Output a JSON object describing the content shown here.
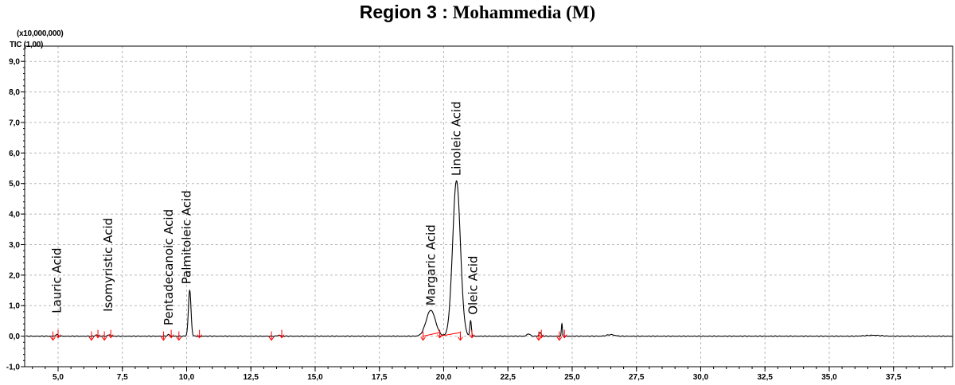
{
  "title_part1": "Region 3 :",
  "title_part2": "Mohammedia (M)",
  "chart_data": {
    "type": "line",
    "title": "Region 3 : Mohammedia (M)",
    "y_scale_label": "(x10,000,000)",
    "trace_label": "TIC (1,00)",
    "xlim": [
      3.7,
      39.8
    ],
    "ylim": [
      -1.0,
      9.5
    ],
    "grid": true,
    "x_ticks": [
      5.0,
      7.5,
      10.0,
      12.5,
      15.0,
      17.5,
      20.0,
      22.5,
      25.0,
      27.5,
      30.0,
      32.5,
      35.0,
      37.5
    ],
    "x_tick_labels": [
      "5,0",
      "7,5",
      "10,0",
      "12,5",
      "15,0",
      "17,5",
      "20,0",
      "22,5",
      "25,0",
      "27,5",
      "30,0",
      "32,5",
      "35,0",
      "37,5"
    ],
    "y_ticks": [
      -1.0,
      0.0,
      1.0,
      2.0,
      3.0,
      4.0,
      5.0,
      6.0,
      7.0,
      8.0,
      9.0
    ],
    "y_tick_labels": [
      "-1,0",
      "0,0",
      "1,0",
      "2,0",
      "3,0",
      "4,0",
      "5,0",
      "6,0",
      "7,0",
      "8,0",
      "9,0"
    ],
    "series": [
      {
        "color": "#000000",
        "baseline": 0.0,
        "peaks": [
          {
            "rt": 4.95,
            "height": 0.05,
            "width": 0.05
          },
          {
            "rt": 6.5,
            "height": 0.04,
            "width": 0.05
          },
          {
            "rt": 7.0,
            "height": 0.05,
            "width": 0.05
          },
          {
            "rt": 9.3,
            "height": 0.05,
            "width": 0.05
          },
          {
            "rt": 10.12,
            "height": 1.5,
            "width": 0.05
          },
          {
            "rt": 13.6,
            "height": 0.03,
            "width": 0.06
          },
          {
            "rt": 19.5,
            "height": 0.85,
            "width": 0.18
          },
          {
            "rt": 20.5,
            "height": 5.1,
            "width": 0.15
          },
          {
            "rt": 21.05,
            "height": 0.5,
            "width": 0.03
          },
          {
            "rt": 23.3,
            "height": 0.08,
            "width": 0.06
          },
          {
            "rt": 23.75,
            "height": 0.12,
            "width": 0.04
          },
          {
            "rt": 24.6,
            "height": 0.4,
            "width": 0.02
          },
          {
            "rt": 26.5,
            "height": 0.05,
            "width": 0.15
          },
          {
            "rt": 36.7,
            "height": 0.03,
            "width": 0.3
          }
        ]
      }
    ],
    "integration_markers_color": "#ff0000",
    "integration_markers": [
      4.8,
      5.0,
      6.3,
      6.55,
      6.8,
      7.05,
      9.1,
      9.4,
      9.7,
      10.5,
      13.3,
      13.7,
      19.2,
      19.85,
      20.65,
      21.1,
      23.7,
      23.8,
      24.5,
      24.7
    ],
    "integration_baselines": [
      [
        19.2,
        19.85
      ],
      [
        19.85,
        20.65
      ]
    ],
    "peak_labels": [
      {
        "text": "Lauric Acid",
        "rt": 4.95
      },
      {
        "text": "Isomyristic Acid",
        "rt": 6.95
      },
      {
        "text": "Pentadecanoic Acid",
        "rt": 9.3
      },
      {
        "text": "Palmitoleic Acid",
        "rt": 10.0
      },
      {
        "text": "Margaric Acid",
        "rt": 19.5
      },
      {
        "text": "Linoleic Acid",
        "rt": 20.5
      },
      {
        "text": "Oleic Acid",
        "rt": 21.15
      }
    ]
  }
}
